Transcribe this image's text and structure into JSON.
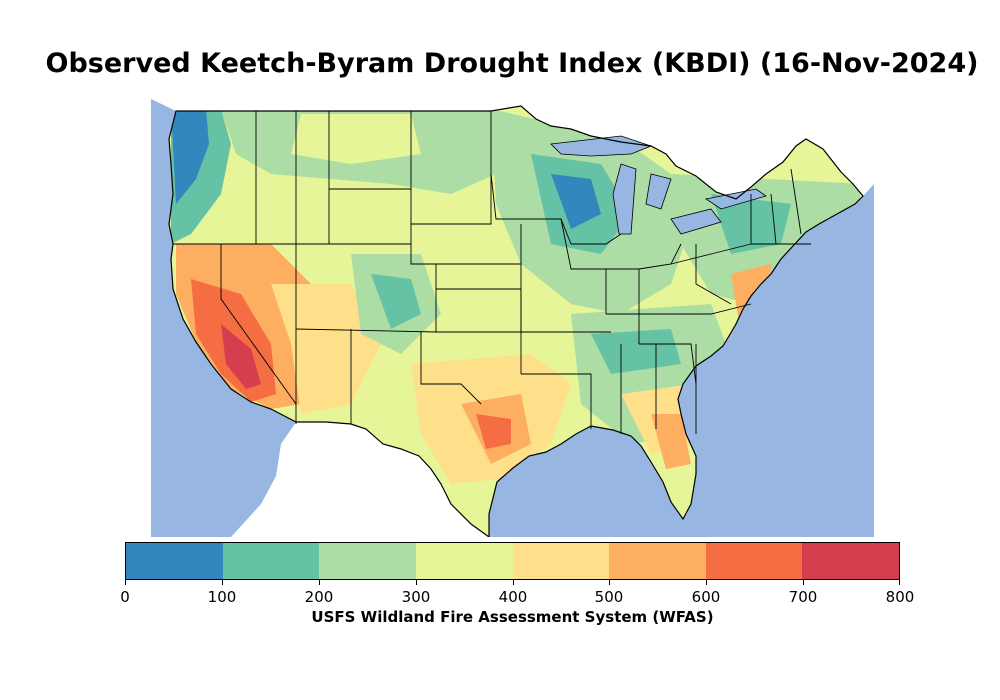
{
  "title": "Observed Keetch-Byram Drought Index (KBDI) (16-Nov-2024)",
  "colorbar": {
    "label": "USFS Wildland Fire Assessment System (WFAS)",
    "ticks": [
      "0",
      "100",
      "200",
      "300",
      "400",
      "500",
      "600",
      "700",
      "800"
    ],
    "colors": [
      "#3288bd",
      "#66c2a5",
      "#abdda4",
      "#e6f598",
      "#fee08b",
      "#fdae61",
      "#f46d43",
      "#d53e4f"
    ]
  },
  "map": {
    "ocean_color": "#97b6e1",
    "land_outside_color": "#ffffff",
    "border_color": "#000000"
  }
}
